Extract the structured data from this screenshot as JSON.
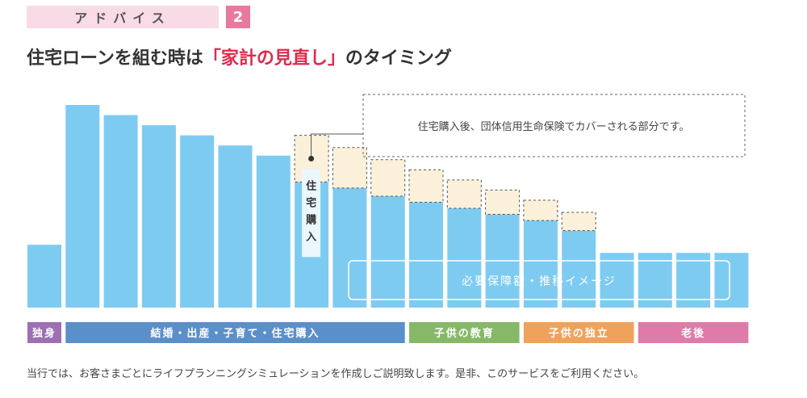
{
  "header": {
    "tag_label": "アドバイス",
    "tag_number": "2",
    "title_pre": "住宅ローンを組む時は",
    "title_highlight": "「家計の見直し」",
    "title_post": "のタイミング"
  },
  "chart_data": {
    "type": "bar",
    "title": "",
    "ylim": [
      0,
      100
    ],
    "values": [
      31,
      100,
      95,
      90,
      85,
      80,
      75,
      62,
      59,
      55,
      52,
      49,
      46,
      43,
      38,
      27,
      27,
      27,
      27
    ],
    "covered": [
      0,
      0,
      0,
      0,
      0,
      0,
      0,
      23,
      20,
      18,
      16,
      14,
      12,
      10,
      9,
      0,
      0,
      0,
      0
    ],
    "purchase_index": 7,
    "purchase_label": [
      "住",
      "宅",
      "購",
      "入"
    ],
    "callout_text": "住宅購入後、団体信用生命保険でカバーされる部分です。",
    "trend_label": "必要保障額・推移イメージ",
    "stages": [
      {
        "label": "独身",
        "from": 0,
        "to": 0,
        "color": "#9e6fb3"
      },
      {
        "label": "結婚・出産・子育て・住宅購入",
        "from": 1,
        "to": 9,
        "color": "#5b8fc9"
      },
      {
        "label": "子供の教育",
        "from": 10,
        "to": 12,
        "color": "#86b868"
      },
      {
        "label": "子供の独立",
        "from": 13,
        "to": 15,
        "color": "#f0a25b"
      },
      {
        "label": "老後",
        "from": 16,
        "to": 18,
        "color": "#df7ba8"
      }
    ],
    "colors": {
      "bar": "#7ecbf2",
      "covered_fill": "#fbf0d9",
      "covered_stroke": "#555555"
    }
  },
  "footnote": "当行では、お客さまごとにライフプランニングシミュレーションを作成しご説明致します。是非、このサービスをご利用ください。"
}
